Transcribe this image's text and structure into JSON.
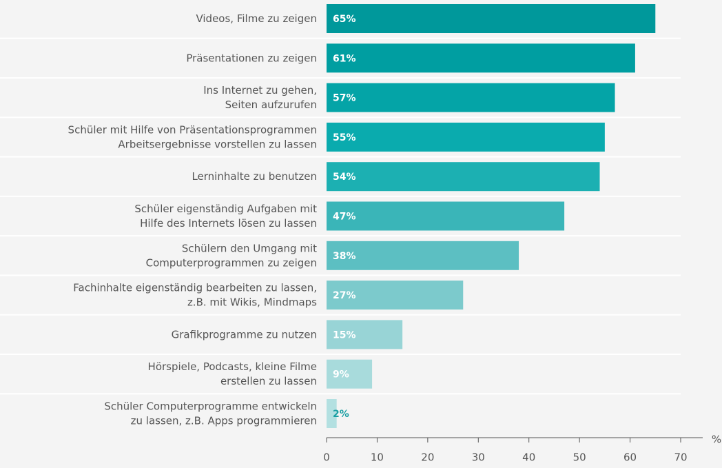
{
  "chart_data": {
    "type": "bar",
    "orientation": "horizontal",
    "categories": [
      [
        "Videos, Filme zu zeigen"
      ],
      [
        "Präsentationen zu zeigen"
      ],
      [
        "Ins Internet zu gehen,",
        "Seiten aufzurufen"
      ],
      [
        "Schüler mit Hilfe von Präsentationsprogrammen",
        "Arbeitsergebnisse vorstellen zu lassen"
      ],
      [
        "Lerninhalte zu benutzen"
      ],
      [
        "Schüler eigenständig Aufgaben mit",
        "Hilfe des Internets lösen zu lassen"
      ],
      [
        "Schülern den Umgang mit",
        "Computerprogrammen zu zeigen"
      ],
      [
        "Fachinhalte eigenständig bearbeiten zu lassen,",
        "z.B. mit Wikis, Mindmaps"
      ],
      [
        "Grafikprogramme zu nutzen"
      ],
      [
        "Hörspiele, Podcasts, kleine Filme",
        "erstellen zu lassen"
      ],
      [
        "Schüler Computerprogramme entwickeln",
        "zu lassen, z.B. Apps programmieren"
      ]
    ],
    "values": [
      65,
      61,
      57,
      55,
      54,
      47,
      38,
      27,
      15,
      9,
      2
    ],
    "value_labels": [
      "65%",
      "61%",
      "57%",
      "55%",
      "54%",
      "47%",
      "38%",
      "27%",
      "15%",
      "9%",
      "2%"
    ],
    "colors": [
      "#00989b",
      "#009ea1",
      "#04a4a7",
      "#0aabae",
      "#1cb0b2",
      "#3ab5b8",
      "#5cbfc2",
      "#7ccacc",
      "#98d4d6",
      "#a8dbdc",
      "#b3e0e1"
    ],
    "value_label_colors": [
      "#ffffff",
      "#ffffff",
      "#ffffff",
      "#ffffff",
      "#ffffff",
      "#ffffff",
      "#ffffff",
      "#ffffff",
      "#ffffff",
      "#ffffff",
      "#1a9fa3"
    ],
    "xlim": [
      0,
      70
    ],
    "xticks": [
      0,
      10,
      20,
      30,
      40,
      50,
      60,
      70
    ],
    "x_unit": "%"
  }
}
